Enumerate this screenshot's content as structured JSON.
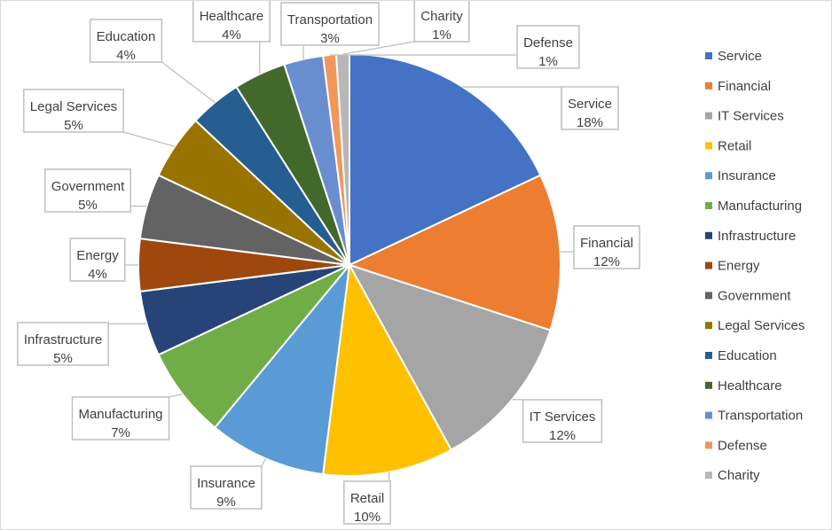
{
  "chart_data": {
    "type": "pie",
    "title": "",
    "legend_position": "right",
    "slices": [
      {
        "label": "Service",
        "value": 18,
        "pct_label": "18%",
        "color": "#4472C4"
      },
      {
        "label": "Financial",
        "value": 12,
        "pct_label": "12%",
        "color": "#ED7D31"
      },
      {
        "label": "IT Services",
        "value": 12,
        "pct_label": "12%",
        "color": "#A5A5A5"
      },
      {
        "label": "Retail",
        "value": 10,
        "pct_label": "10%",
        "color": "#FFC000"
      },
      {
        "label": "Insurance",
        "value": 9,
        "pct_label": "9%",
        "color": "#5B9BD5"
      },
      {
        "label": "Manufacturing",
        "value": 7,
        "pct_label": "7%",
        "color": "#70AD47"
      },
      {
        "label": "Infrastructure",
        "value": 5,
        "pct_label": "5%",
        "color": "#264478"
      },
      {
        "label": "Energy",
        "value": 4,
        "pct_label": "4%",
        "color": "#9E480E"
      },
      {
        "label": "Government",
        "value": 5,
        "pct_label": "5%",
        "color": "#636363"
      },
      {
        "label": "Legal Services",
        "value": 5,
        "pct_label": "5%",
        "color": "#997300"
      },
      {
        "label": "Education",
        "value": 4,
        "pct_label": "4%",
        "color": "#255E91"
      },
      {
        "label": "Healthcare",
        "value": 4,
        "pct_label": "4%",
        "color": "#43682B"
      },
      {
        "label": "Transportation",
        "value": 3,
        "pct_label": "3%",
        "color": "#698ED0"
      },
      {
        "label": "Defense",
        "value": 1,
        "pct_label": "1%",
        "color": "#F1975A"
      },
      {
        "label": "Charity",
        "value": 1,
        "pct_label": "1%",
        "color": "#B7B7B7"
      }
    ]
  }
}
